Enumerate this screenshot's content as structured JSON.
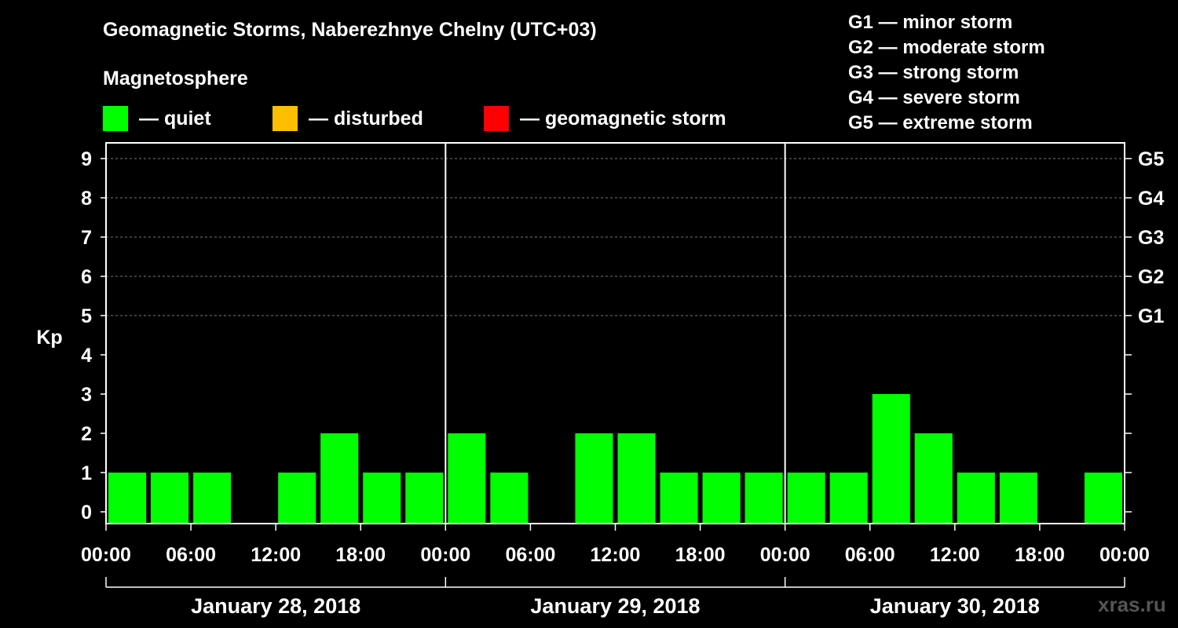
{
  "header": {
    "title": "Geomagnetic Storms, Naberezhnye Chelny (UTC+03)",
    "magnetosphere_label": "Magnetosphere"
  },
  "legend": [
    {
      "label": "— quiet",
      "color": "#00ff00"
    },
    {
      "label": "— disturbed",
      "color": "#ffbf00"
    },
    {
      "label": "— geomagnetic storm",
      "color": "#ff0000"
    }
  ],
  "storm_scale": [
    "G1 — minor storm",
    "G2 — moderate storm",
    "G3 — strong storm",
    "G4 — severe storm",
    "G5 — extreme storm"
  ],
  "chart_data": {
    "type": "bar",
    "ylabel": "Kp",
    "ylim": [
      0,
      9
    ],
    "yticks": [
      "0",
      "1",
      "2",
      "3",
      "4",
      "5",
      "6",
      "7",
      "8",
      "9"
    ],
    "right_ticks": [
      {
        "kp": 5,
        "label": "G1"
      },
      {
        "kp": 6,
        "label": "G2"
      },
      {
        "kp": 7,
        "label": "G3"
      },
      {
        "kp": 8,
        "label": "G4"
      },
      {
        "kp": 9,
        "label": "G5"
      }
    ],
    "x_tick_labels": [
      "00:00",
      "06:00",
      "12:00",
      "18:00",
      "00:00",
      "06:00",
      "12:00",
      "18:00",
      "00:00",
      "06:00",
      "12:00",
      "18:00",
      "00:00"
    ],
    "days": [
      "January 28, 2018",
      "January 29, 2018",
      "January 30, 2018"
    ],
    "interval_hours": 3,
    "values": [
      1,
      1,
      1,
      0,
      1,
      2,
      1,
      1,
      2,
      1,
      0,
      2,
      2,
      1,
      1,
      1,
      1,
      1,
      3,
      2,
      1,
      1,
      0,
      1
    ],
    "bar_color": "#00ff00"
  },
  "watermark": "xras.ru"
}
